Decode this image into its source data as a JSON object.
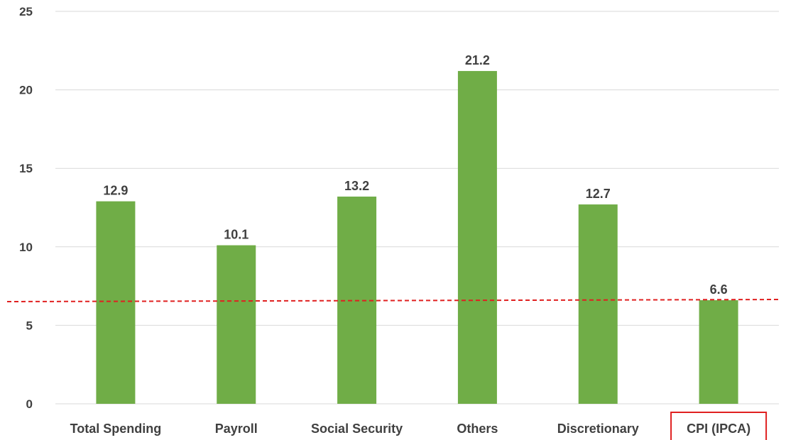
{
  "chart_data": {
    "type": "bar",
    "categories": [
      "Total Spending",
      "Payroll",
      "Social Security",
      "Others",
      "Discretionary",
      "CPI (IPCA)"
    ],
    "values": [
      12.9,
      10.1,
      13.2,
      21.2,
      12.7,
      6.6
    ],
    "data_labels": [
      "12.9",
      "10.1",
      "13.2",
      "21.2",
      "12.7",
      "6.6"
    ],
    "yticks": [
      0,
      5,
      10,
      15,
      20,
      25
    ],
    "ylim": [
      0,
      25
    ],
    "grid": true,
    "reference_line": {
      "value": 6.6,
      "style": "dashed",
      "color": "#e02020"
    },
    "highlighted_category": "CPI (IPCA)",
    "bar_color": "#70ad47",
    "highlight_box_color": "#e02020",
    "text_color": "#404040",
    "gridline_color": "#d9d9d9"
  }
}
